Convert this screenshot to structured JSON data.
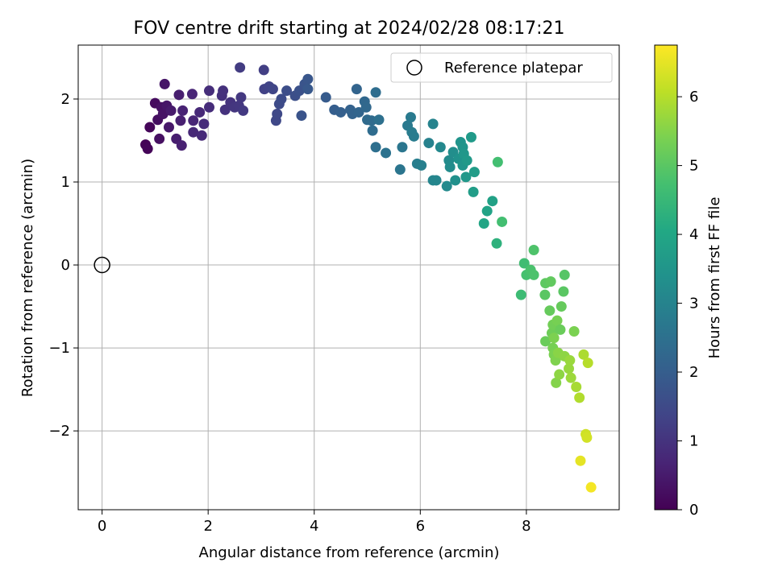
{
  "chart_data": {
    "type": "scatter",
    "title": "FOV centre drift starting at 2024/02/28 08:17:21",
    "xlabel": "Angular distance from reference (arcmin)",
    "ylabel": "Rotation from reference (arcmin)",
    "xlim": [
      -0.45,
      9.75
    ],
    "ylim": [
      -2.95,
      2.65
    ],
    "xticks": [
      0,
      2,
      4,
      6,
      8
    ],
    "yticks": [
      -2,
      -1,
      0,
      1,
      2
    ],
    "xtick_labels": [
      "0",
      "2",
      "4",
      "6",
      "8"
    ],
    "ytick_labels": [
      "−2",
      "−1",
      "0",
      "1",
      "2"
    ],
    "grid": true,
    "legend": {
      "position": "top-right",
      "entries": [
        "Reference platepar"
      ]
    },
    "reference_point": {
      "name": "Reference platepar",
      "x": 0,
      "y": 0,
      "marker": "open-circle"
    },
    "colorbar": {
      "label": "Hours from first FF file",
      "colormap": "viridis",
      "range": [
        0,
        6.75
      ],
      "ticks": [
        0,
        1,
        2,
        3,
        4,
        5,
        6
      ],
      "tick_labels": [
        "0",
        "1",
        "2",
        "3",
        "4",
        "5",
        "6"
      ]
    },
    "points": [
      [
        0.82,
        1.45,
        0.05
      ],
      [
        0.86,
        1.4,
        0.08
      ],
      [
        0.9,
        1.66,
        0.1
      ],
      [
        1.0,
        1.95,
        0.2
      ],
      [
        1.05,
        1.75,
        0.25
      ],
      [
        1.08,
        1.52,
        0.28
      ],
      [
        1.12,
        1.9,
        0.3
      ],
      [
        1.15,
        1.82,
        0.35
      ],
      [
        1.18,
        2.18,
        0.38
      ],
      [
        1.22,
        1.92,
        0.4
      ],
      [
        1.26,
        1.66,
        0.45
      ],
      [
        1.3,
        1.86,
        0.5
      ],
      [
        1.4,
        1.52,
        0.55
      ],
      [
        1.45,
        2.05,
        0.55
      ],
      [
        1.48,
        1.74,
        0.6
      ],
      [
        1.5,
        1.44,
        0.62
      ],
      [
        1.52,
        1.86,
        0.65
      ],
      [
        1.7,
        2.06,
        0.7
      ],
      [
        1.72,
        1.74,
        0.72
      ],
      [
        1.72,
        1.6,
        0.75
      ],
      [
        1.84,
        1.84,
        0.78
      ],
      [
        1.88,
        1.56,
        0.8
      ],
      [
        1.92,
        1.7,
        0.82
      ],
      [
        2.02,
        1.9,
        0.85
      ],
      [
        2.02,
        2.1,
        0.88
      ],
      [
        2.26,
        2.04,
        0.92
      ],
      [
        2.28,
        2.1,
        0.95
      ],
      [
        2.32,
        1.87,
        0.98
      ],
      [
        2.42,
        1.96,
        1.0
      ],
      [
        2.5,
        1.9,
        1.05
      ],
      [
        2.58,
        1.92,
        1.08
      ],
      [
        2.62,
        2.02,
        1.1
      ],
      [
        2.66,
        1.86,
        1.12
      ],
      [
        2.6,
        2.38,
        1.18
      ],
      [
        3.05,
        2.35,
        1.25
      ],
      [
        3.06,
        2.12,
        1.3
      ],
      [
        3.15,
        2.15,
        1.35
      ],
      [
        3.22,
        2.12,
        1.4
      ],
      [
        3.28,
        1.74,
        1.45
      ],
      [
        3.3,
        1.82,
        1.48
      ],
      [
        3.34,
        1.94,
        1.52
      ],
      [
        3.38,
        2.0,
        1.55
      ],
      [
        3.48,
        2.1,
        1.6
      ],
      [
        3.64,
        2.04,
        1.62
      ],
      [
        3.72,
        2.1,
        1.68
      ],
      [
        3.76,
        1.8,
        1.72
      ],
      [
        3.82,
        2.18,
        1.75
      ],
      [
        3.88,
        2.24,
        1.8
      ],
      [
        3.88,
        2.12,
        1.85
      ],
      [
        4.22,
        2.02,
        1.92
      ],
      [
        4.38,
        1.87,
        2.0
      ],
      [
        4.5,
        1.84,
        2.05
      ],
      [
        4.68,
        1.87,
        2.1
      ],
      [
        4.72,
        1.82,
        2.12
      ],
      [
        4.8,
        2.12,
        2.15
      ],
      [
        4.84,
        1.84,
        2.2
      ],
      [
        4.95,
        1.97,
        2.25
      ],
      [
        4.98,
        1.9,
        2.28
      ],
      [
        5.0,
        1.75,
        2.32
      ],
      [
        5.08,
        1.74,
        2.35
      ],
      [
        5.1,
        1.62,
        2.38
      ],
      [
        5.16,
        2.08,
        2.4
      ],
      [
        5.16,
        1.42,
        2.45
      ],
      [
        5.22,
        1.75,
        2.48
      ],
      [
        5.35,
        1.35,
        2.55
      ],
      [
        5.62,
        1.15,
        2.62
      ],
      [
        5.66,
        1.42,
        2.65
      ],
      [
        5.76,
        1.68,
        2.72
      ],
      [
        5.82,
        1.78,
        2.75
      ],
      [
        5.84,
        1.6,
        2.8
      ],
      [
        5.88,
        1.55,
        2.82
      ],
      [
        5.94,
        1.22,
        2.85
      ],
      [
        6.02,
        1.2,
        2.9
      ],
      [
        6.16,
        1.47,
        2.95
      ],
      [
        6.24,
        1.7,
        3.0
      ],
      [
        6.24,
        1.02,
        3.05
      ],
      [
        6.3,
        1.02,
        3.08
      ],
      [
        6.38,
        1.42,
        3.12
      ],
      [
        6.5,
        0.95,
        3.18
      ],
      [
        6.54,
        1.26,
        3.22
      ],
      [
        6.56,
        1.18,
        3.25
      ],
      [
        6.62,
        1.36,
        3.3
      ],
      [
        6.66,
        1.02,
        3.35
      ],
      [
        6.72,
        1.28,
        3.4
      ],
      [
        6.76,
        1.48,
        3.45
      ],
      [
        6.8,
        1.42,
        3.48
      ],
      [
        6.8,
        1.2,
        3.5
      ],
      [
        6.82,
        1.34,
        3.55
      ],
      [
        6.86,
        1.06,
        3.58
      ],
      [
        6.88,
        1.26,
        3.6
      ],
      [
        6.96,
        1.54,
        3.65
      ],
      [
        7.0,
        0.88,
        3.72
      ],
      [
        7.02,
        1.12,
        3.7
      ],
      [
        7.2,
        0.5,
        3.95
      ],
      [
        7.26,
        0.65,
        3.9
      ],
      [
        7.36,
        0.77,
        3.85
      ],
      [
        7.44,
        0.26,
        4.3
      ],
      [
        7.46,
        1.24,
        4.7
      ],
      [
        7.54,
        0.52,
        4.7
      ],
      [
        7.9,
        -0.36,
        4.6
      ],
      [
        7.96,
        0.02,
        4.65
      ],
      [
        8.0,
        -0.12,
        4.75
      ],
      [
        8.08,
        -0.06,
        4.8
      ],
      [
        8.14,
        -0.12,
        4.82
      ],
      [
        8.14,
        0.18,
        4.85
      ],
      [
        8.35,
        -0.36,
        5.0
      ],
      [
        8.36,
        -0.22,
        5.05
      ],
      [
        8.36,
        -0.92,
        5.2
      ],
      [
        8.44,
        -0.55,
        5.15
      ],
      [
        8.46,
        -0.2,
        5.1
      ],
      [
        8.48,
        -0.82,
        5.25
      ],
      [
        8.5,
        -0.72,
        5.3
      ],
      [
        8.5,
        -1.0,
        5.35
      ],
      [
        8.52,
        -1.08,
        5.4
      ],
      [
        8.52,
        -0.88,
        5.42
      ],
      [
        8.55,
        -1.15,
        5.45
      ],
      [
        8.56,
        -1.42,
        5.5
      ],
      [
        8.58,
        -0.67,
        5.35
      ],
      [
        8.6,
        -1.06,
        5.55
      ],
      [
        8.62,
        -1.32,
        5.6
      ],
      [
        8.64,
        -0.78,
        5.2
      ],
      [
        8.66,
        -0.5,
        5.15
      ],
      [
        8.7,
        -0.32,
        5.0
      ],
      [
        8.72,
        -0.12,
        4.95
      ],
      [
        8.72,
        -1.1,
        5.6
      ],
      [
        8.8,
        -1.25,
        5.7
      ],
      [
        8.82,
        -1.15,
        5.72
      ],
      [
        8.84,
        -1.36,
        5.75
      ],
      [
        8.9,
        -0.8,
        5.4
      ],
      [
        8.94,
        -1.47,
        5.85
      ],
      [
        9.0,
        -1.6,
        5.95
      ],
      [
        9.02,
        -2.36,
        6.5
      ],
      [
        9.08,
        -1.08,
        5.9
      ],
      [
        9.12,
        -2.04,
        6.25
      ],
      [
        9.14,
        -2.08,
        6.3
      ],
      [
        9.16,
        -1.18,
        6.0
      ],
      [
        9.22,
        -2.68,
        6.65
      ]
    ]
  }
}
